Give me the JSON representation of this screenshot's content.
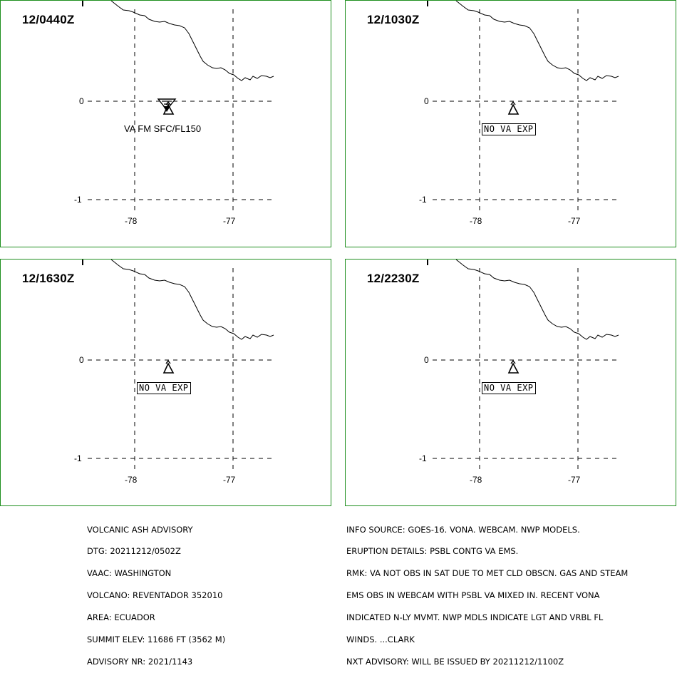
{
  "panels": [
    {
      "id": "p1",
      "title": "12/0440Z",
      "va_text": "VA FM SFC/FL150",
      "boxed": false,
      "ash_symbol": true
    },
    {
      "id": "p2",
      "title": "12/1030Z",
      "va_text": "NO VA EXP",
      "boxed": true,
      "ash_symbol": false
    },
    {
      "id": "p3",
      "title": "12/1630Z",
      "va_text": "NO VA EXP",
      "boxed": true,
      "ash_symbol": false
    },
    {
      "id": "p4",
      "title": "12/2230Z",
      "va_text": "NO VA EXP",
      "boxed": true,
      "ash_symbol": false
    }
  ],
  "axes": {
    "lat_labels": [
      "0",
      "-1"
    ],
    "lon_labels": [
      "-78",
      "-77"
    ]
  },
  "advisory_left": [
    "VOLCANIC ASH ADVISORY",
    "DTG: 20211212/0502Z",
    "VAAC: WASHINGTON",
    "VOLCANO: REVENTADOR 352010",
    "AREA: ECUADOR",
    "SUMMIT ELEV: 11686 FT (3562 M)",
    "ADVISORY NR: 2021/1143"
  ],
  "advisory_right": [
    "INFO SOURCE: GOES-16. VONA. WEBCAM. NWP MODELS.",
    "ERUPTION DETAILS: PSBL CONTG VA EMS.",
    "RMK: VA NOT OBS IN SAT DUE TO MET CLD OBSCN. GAS AND STEAM",
    "EMS OBS IN WEBCAM WITH PSBL VA MIXED IN. RECENT VONA",
    "INDICATED N-LY MVMT. NWP MDLS INDICATE LGT AND VRBL FL",
    "WINDS. ...CLARK",
    "NXT ADVISORY: WILL BE ISSUED BY 20211212/1100Z"
  ],
  "colors": {
    "panel_border": "#1f8f1f",
    "ink": "#000000"
  }
}
